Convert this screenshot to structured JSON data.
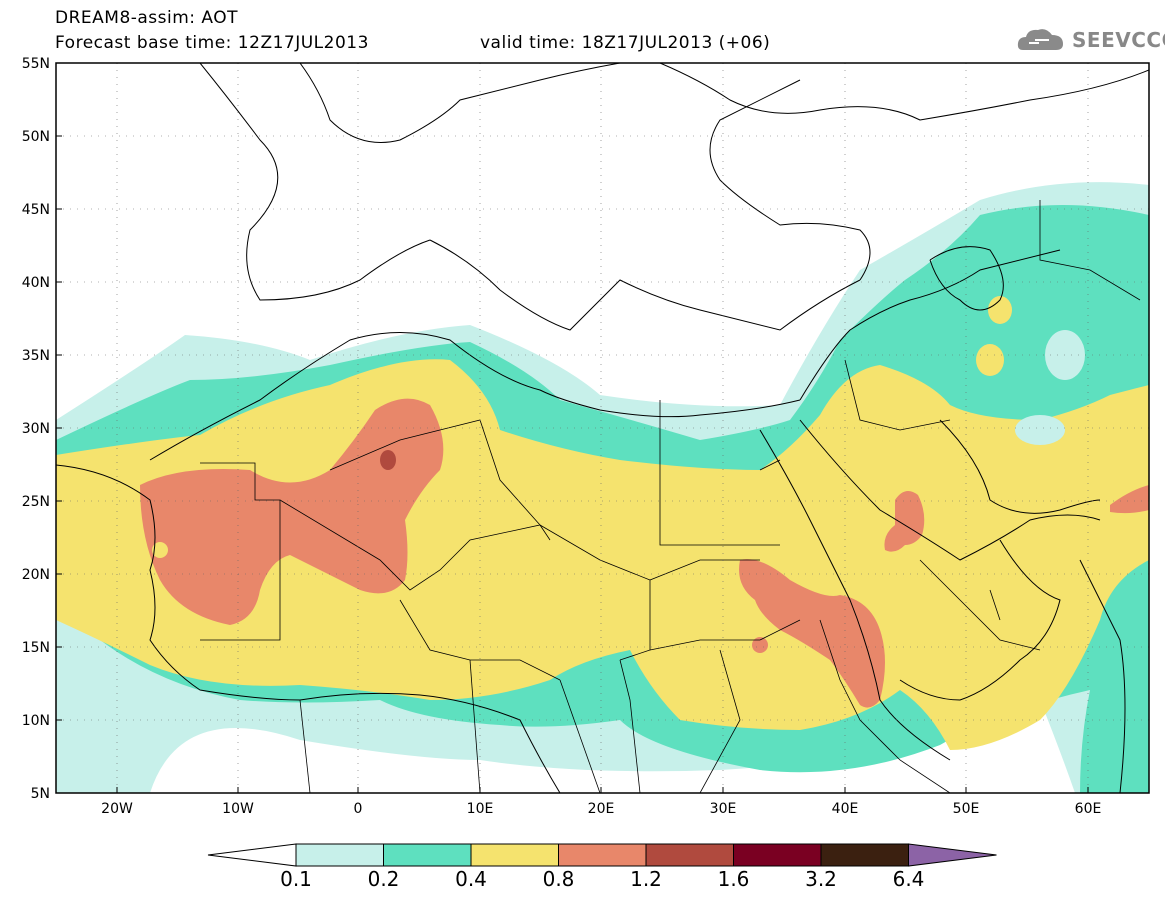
{
  "header": {
    "line1": "DREAM8-assim: AOT",
    "line2_base": "Forecast base time: 12Z17JUL2013",
    "line2_valid": "valid time: 18Z17JUL2013 (+06)"
  },
  "logo": {
    "text": "SEEVCCC",
    "icon": "cloud-icon"
  },
  "axes": {
    "lat_labels": [
      "55N",
      "50N",
      "45N",
      "40N",
      "35N",
      "30N",
      "25N",
      "20N",
      "15N",
      "10N",
      "5N"
    ],
    "lon_labels": [
      "20W",
      "10W",
      "0",
      "10E",
      "20E",
      "30E",
      "40E",
      "50E",
      "60E"
    ]
  },
  "colorbar": {
    "labels": [
      "0.1",
      "0.2",
      "0.4",
      "0.8",
      "1.2",
      "1.6",
      "3.2",
      "6.4"
    ],
    "colors": [
      "#ffffff",
      "#c7f0ea",
      "#5ee0bf",
      "#f5e36e",
      "#e8876a",
      "#b04a3e",
      "#7a0022",
      "#3b2010",
      "#8c63a6"
    ]
  }
}
